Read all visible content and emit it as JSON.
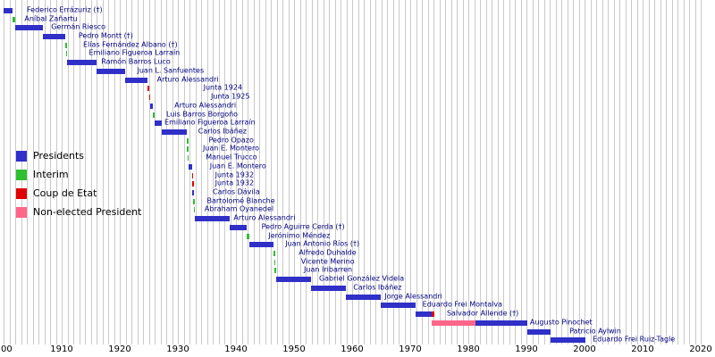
{
  "legend": {
    "items": [
      {
        "label": "Presidents",
        "color_key": "president"
      },
      {
        "label": "Interim",
        "color_key": "interim"
      },
      {
        "label": "Coup de Etat",
        "color_key": "coup"
      },
      {
        "label": "Non-elected President",
        "color_key": "non_elected"
      }
    ]
  },
  "colors": {
    "president": "#3030c8",
    "interim": "#2fbf2f",
    "coup": "#e00000",
    "non_elected": "#ff6688",
    "grid": "#c9c9c9",
    "label_text": "#000080",
    "axis_text": "#000000"
  },
  "chart_data": {
    "type": "timeline",
    "title": "",
    "x_axis": {
      "start": 1900,
      "end": 2020,
      "tick_interval": 10,
      "grid_interval": 1,
      "tick_labels": [
        "00",
        "1910",
        "1920",
        "1930",
        "1940",
        "1950",
        "1960",
        "1970",
        "1980",
        "1990",
        "2000",
        "2010",
        "2020"
      ]
    },
    "rows": [
      {
        "label": "Federico Errázuriz (†)",
        "label_year": 1904.0,
        "segments": [
          {
            "from": 1900.0,
            "to": 1901.55,
            "type": "president"
          }
        ]
      },
      {
        "label": "Aníbal Zañartu",
        "label_year": 1903.6,
        "segments": [
          {
            "from": 1901.55,
            "to": 1901.97,
            "type": "interim"
          }
        ]
      },
      {
        "label": "Germán Riesco",
        "label_year": 1908.2,
        "segments": [
          {
            "from": 1901.97,
            "to": 1906.7,
            "type": "president"
          }
        ]
      },
      {
        "label": "Pedro Montt (†)",
        "label_year": 1912.9,
        "segments": [
          {
            "from": 1906.7,
            "to": 1910.62,
            "type": "president"
          }
        ]
      },
      {
        "label": "Elías Fernández Albano (†)",
        "label_year": 1913.7,
        "segments": [
          {
            "from": 1910.62,
            "to": 1910.7,
            "type": "interim"
          }
        ]
      },
      {
        "label": "Emiliano Figueroa Larraín",
        "label_year": 1914.7,
        "segments": [
          {
            "from": 1910.7,
            "to": 1910.97,
            "type": "interim"
          }
        ]
      },
      {
        "label": "Ramón Barros Luco",
        "label_year": 1916.8,
        "segments": [
          {
            "from": 1910.97,
            "to": 1915.97,
            "type": "president"
          }
        ]
      },
      {
        "label": "Juan L. Sanfuentes",
        "label_year": 1923.0,
        "segments": [
          {
            "from": 1915.97,
            "to": 1920.97,
            "type": "president"
          }
        ]
      },
      {
        "label": "Arturo Alessandri",
        "label_year": 1926.4,
        "segments": [
          {
            "from": 1920.97,
            "to": 1924.7,
            "type": "president"
          }
        ]
      },
      {
        "label": "Junta 1924",
        "label_year": 1934.4,
        "segments": [
          {
            "from": 1924.7,
            "to": 1925.07,
            "type": "coup"
          }
        ]
      },
      {
        "label": "Junta 1925",
        "label_year": 1935.7,
        "segments": [
          {
            "from": 1925.07,
            "to": 1925.21,
            "type": "coup"
          }
        ]
      },
      {
        "label": "Arturo Alessandri",
        "label_year": 1929.4,
        "segments": [
          {
            "from": 1925.21,
            "to": 1925.75,
            "type": "president"
          }
        ]
      },
      {
        "label": "Luis Barros Borgoño",
        "label_year": 1928.0,
        "segments": [
          {
            "from": 1925.75,
            "to": 1925.97,
            "type": "interim"
          }
        ]
      },
      {
        "label": "Emiliano Figueroa Larraín",
        "label_year": 1927.7,
        "segments": [
          {
            "from": 1925.97,
            "to": 1927.3,
            "type": "president"
          }
        ]
      },
      {
        "label": "Carlos Ibáñez",
        "label_year": 1933.5,
        "segments": [
          {
            "from": 1927.3,
            "to": 1931.55,
            "type": "president"
          }
        ]
      },
      {
        "label": "Pedro Opazo",
        "label_year": 1935.3,
        "segments": [
          {
            "from": 1931.55,
            "to": 1931.6,
            "type": "interim"
          }
        ]
      },
      {
        "label": "Juan E. Montero",
        "label_year": 1934.3,
        "segments": [
          {
            "from": 1931.6,
            "to": 1931.65,
            "type": "interim"
          }
        ]
      },
      {
        "label": "Manuel Trucco",
        "label_year": 1934.8,
        "segments": [
          {
            "from": 1931.65,
            "to": 1931.9,
            "type": "interim"
          }
        ]
      },
      {
        "label": "Juan E. Montero",
        "label_year": 1935.5,
        "segments": [
          {
            "from": 1931.9,
            "to": 1932.43,
            "type": "president"
          }
        ]
      },
      {
        "label": "Junta 1932",
        "label_year": 1936.4,
        "segments": [
          {
            "from": 1932.43,
            "to": 1932.47,
            "type": "coup"
          }
        ]
      },
      {
        "label": "Junta 1932",
        "label_year": 1936.4,
        "segments": [
          {
            "from": 1932.47,
            "to": 1932.5,
            "type": "coup"
          }
        ]
      },
      {
        "label": "Carlos Dávila",
        "label_year": 1936.0,
        "segments": [
          {
            "from": 1932.5,
            "to": 1932.68,
            "type": "president"
          }
        ]
      },
      {
        "label": "Bartolomé Blanche",
        "label_year": 1935.0,
        "segments": [
          {
            "from": 1932.68,
            "to": 1932.75,
            "type": "interim"
          }
        ]
      },
      {
        "label": "Abraham Oyanedel",
        "label_year": 1934.6,
        "segments": [
          {
            "from": 1932.75,
            "to": 1932.97,
            "type": "interim"
          }
        ]
      },
      {
        "label": "Arturo Alessandri",
        "label_year": 1939.6,
        "segments": [
          {
            "from": 1932.97,
            "to": 1938.97,
            "type": "president"
          }
        ]
      },
      {
        "label": "Pedro Aguirre Cerda (†)",
        "label_year": 1944.4,
        "segments": [
          {
            "from": 1938.97,
            "to": 1941.87,
            "type": "president"
          }
        ]
      },
      {
        "label": "Jerónimo Méndez",
        "label_year": 1945.6,
        "segments": [
          {
            "from": 1941.87,
            "to": 1942.25,
            "type": "interim"
          }
        ]
      },
      {
        "label": "Juan Antonio Ríos (†)",
        "label_year": 1948.5,
        "segments": [
          {
            "from": 1942.25,
            "to": 1946.5,
            "type": "president"
          }
        ]
      },
      {
        "label": "Alfredo Duhalde",
        "label_year": 1950.8,
        "segments": [
          {
            "from": 1946.5,
            "to": 1946.6,
            "type": "interim"
          }
        ]
      },
      {
        "label": "Vicente Merino",
        "label_year": 1951.2,
        "segments": [
          {
            "from": 1946.6,
            "to": 1946.64,
            "type": "interim"
          }
        ]
      },
      {
        "label": "Juan Iribarren",
        "label_year": 1951.7,
        "segments": [
          {
            "from": 1946.64,
            "to": 1946.85,
            "type": "interim"
          }
        ]
      },
      {
        "label": "Gabriel González Videla",
        "label_year": 1954.3,
        "segments": [
          {
            "from": 1946.85,
            "to": 1952.85,
            "type": "president"
          }
        ]
      },
      {
        "label": "Carlos Ibáñez",
        "label_year": 1960.2,
        "segments": [
          {
            "from": 1952.85,
            "to": 1958.85,
            "type": "president"
          }
        ]
      },
      {
        "label": "Jorge Alessandri",
        "label_year": 1965.6,
        "segments": [
          {
            "from": 1958.85,
            "to": 1964.85,
            "type": "president"
          }
        ]
      },
      {
        "label": "Eduardo Frei Montalva",
        "label_year": 1972.1,
        "segments": [
          {
            "from": 1964.85,
            "to": 1970.85,
            "type": "president"
          }
        ]
      },
      {
        "label": "Salvador Allende (†)",
        "label_year": 1976.3,
        "segments": [
          {
            "from": 1970.85,
            "to": 1973.7,
            "type": "president"
          },
          {
            "from": 1973.7,
            "to": 1974.1,
            "type": "coup"
          }
        ]
      },
      {
        "label": "Augusto Pinochet",
        "label_year": 1990.6,
        "segments": [
          {
            "from": 1973.7,
            "to": 1981.2,
            "type": "non_elected"
          },
          {
            "from": 1981.2,
            "to": 1990.2,
            "type": "president"
          }
        ]
      },
      {
        "label": "Patricio Aylwin",
        "label_year": 1997.4,
        "segments": [
          {
            "from": 1990.2,
            "to": 1994.2,
            "type": "president"
          }
        ]
      },
      {
        "label": "Eduardo Frei Ruiz-Tagle",
        "label_year": 2001.4,
        "segments": [
          {
            "from": 1994.2,
            "to": 2000.2,
            "type": "president"
          }
        ]
      }
    ]
  }
}
